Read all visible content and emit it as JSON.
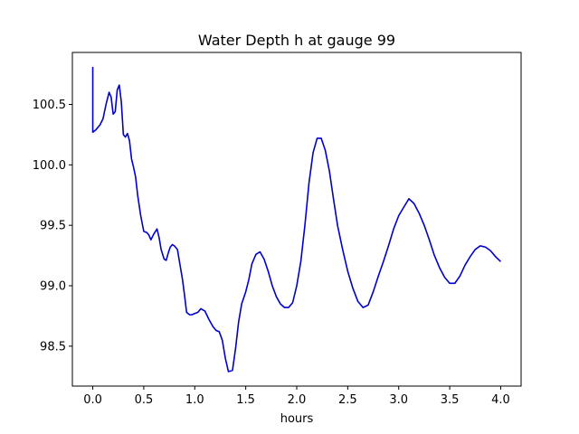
{
  "chart_data": {
    "type": "line",
    "title": "Water Depth h at gauge 99",
    "xlabel": "hours",
    "ylabel": "",
    "xlim": [
      -0.2,
      4.2
    ],
    "ylim": [
      98.17,
      100.93
    ],
    "xticks": [
      0.0,
      0.5,
      1.0,
      1.5,
      2.0,
      2.5,
      3.0,
      3.5,
      4.0
    ],
    "xtick_labels": [
      "0.0",
      "0.5",
      "1.0",
      "1.5",
      "2.0",
      "2.5",
      "3.0",
      "3.5",
      "4.0"
    ],
    "yticks": [
      98.5,
      99.0,
      99.5,
      100.0,
      100.5
    ],
    "ytick_labels": [
      "98.5",
      "99.0",
      "99.5",
      "100.0",
      "100.5"
    ],
    "grid": false,
    "legend": "none",
    "series": [
      {
        "color": "#0000cc",
        "x": [
          0.0,
          0.0,
          0.0,
          0.03,
          0.07,
          0.1,
          0.13,
          0.16,
          0.18,
          0.2,
          0.22,
          0.24,
          0.26,
          0.28,
          0.3,
          0.32,
          0.34,
          0.36,
          0.38,
          0.4,
          0.42,
          0.44,
          0.47,
          0.5,
          0.53,
          0.55,
          0.57,
          0.6,
          0.63,
          0.65,
          0.67,
          0.7,
          0.72,
          0.74,
          0.76,
          0.78,
          0.8,
          0.83,
          0.85,
          0.88,
          0.9,
          0.92,
          0.95,
          0.97,
          1.0,
          1.03,
          1.06,
          1.1,
          1.14,
          1.18,
          1.21,
          1.24,
          1.27,
          1.3,
          1.33,
          1.37,
          1.4,
          1.43,
          1.46,
          1.5,
          1.53,
          1.56,
          1.6,
          1.64,
          1.68,
          1.72,
          1.76,
          1.8,
          1.84,
          1.88,
          1.92,
          1.96,
          2.0,
          2.04,
          2.08,
          2.12,
          2.16,
          2.2,
          2.24,
          2.28,
          2.32,
          2.36,
          2.4,
          2.45,
          2.5,
          2.55,
          2.6,
          2.65,
          2.7,
          2.75,
          2.8,
          2.85,
          2.9,
          2.95,
          3.0,
          3.05,
          3.1,
          3.15,
          3.2,
          3.25,
          3.3,
          3.35,
          3.4,
          3.45,
          3.5,
          3.55,
          3.6,
          3.65,
          3.7,
          3.75,
          3.8,
          3.85,
          3.9,
          3.95,
          4.0
        ],
        "y": [
          100.81,
          100.64,
          100.27,
          100.29,
          100.33,
          100.38,
          100.5,
          100.6,
          100.56,
          100.42,
          100.44,
          100.62,
          100.66,
          100.52,
          100.25,
          100.23,
          100.26,
          100.2,
          100.05,
          99.98,
          99.9,
          99.75,
          99.58,
          99.45,
          99.44,
          99.42,
          99.38,
          99.43,
          99.47,
          99.4,
          99.3,
          99.22,
          99.21,
          99.27,
          99.32,
          99.34,
          99.33,
          99.3,
          99.2,
          99.05,
          98.92,
          98.78,
          98.76,
          98.76,
          98.77,
          98.78,
          98.81,
          98.79,
          98.72,
          98.66,
          98.63,
          98.62,
          98.55,
          98.4,
          98.29,
          98.3,
          98.48,
          98.7,
          98.85,
          98.95,
          99.05,
          99.18,
          99.26,
          99.28,
          99.22,
          99.12,
          99.0,
          98.91,
          98.85,
          98.82,
          98.82,
          98.86,
          99.0,
          99.2,
          99.5,
          99.85,
          100.1,
          100.22,
          100.22,
          100.12,
          99.95,
          99.72,
          99.5,
          99.3,
          99.12,
          98.98,
          98.87,
          98.82,
          98.84,
          98.95,
          99.08,
          99.2,
          99.33,
          99.47,
          99.58,
          99.65,
          99.72,
          99.68,
          99.6,
          99.5,
          99.38,
          99.25,
          99.15,
          99.07,
          99.02,
          99.02,
          99.08,
          99.17,
          99.24,
          99.3,
          99.33,
          99.32,
          99.29,
          99.24,
          99.2
        ]
      }
    ]
  }
}
